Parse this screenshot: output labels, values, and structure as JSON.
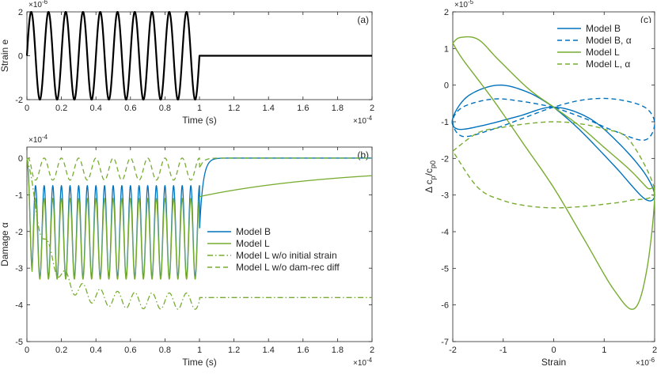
{
  "colors": {
    "blue": "#0072BD",
    "green": "#77AC30",
    "black": "#000000",
    "axis": "#262626"
  },
  "chart_data": [
    {
      "id": "a",
      "type": "line",
      "panel_label": "(a)",
      "xlabel": "Time (s)",
      "ylabel": "Strain e",
      "x_exponent": "×10",
      "x_exponent_power": "-4",
      "y_exponent": "×10",
      "y_exponent_power": "-6",
      "xlim": [
        0,
        2
      ],
      "ylim": [
        -2,
        2
      ],
      "xticks": [
        0,
        0.2,
        0.4,
        0.6,
        0.8,
        1,
        1.2,
        1.4,
        1.6,
        1.8,
        2
      ],
      "xtick_labels": [
        "0",
        "0.2",
        "0.4",
        "0.6",
        "0.8",
        "1",
        "1.2",
        "1.4",
        "1.6",
        "1.8",
        "2"
      ],
      "yticks": [
        -2,
        0,
        2
      ],
      "ytick_labels": [
        "-2",
        "0",
        "2"
      ],
      "grid": false,
      "series": [
        {
          "kind": "sine_then_flat",
          "amplitude": 2,
          "cycles": 10,
          "t_end": 1,
          "color": "#000000",
          "style": "solid",
          "width": 2.2
        }
      ]
    },
    {
      "id": "b",
      "type": "line",
      "panel_label": "(b)",
      "xlabel": "Time (s)",
      "ylabel": "Damage α",
      "x_exponent": "×10",
      "x_exponent_power": "-4",
      "y_exponent": "×10",
      "y_exponent_power": "-4",
      "xlim": [
        0,
        2
      ],
      "ylim": [
        -5,
        0.3
      ],
      "xticks": [
        0,
        0.2,
        0.4,
        0.6,
        0.8,
        1,
        1.2,
        1.4,
        1.6,
        1.8,
        2
      ],
      "xtick_labels": [
        "0",
        "0.2",
        "0.4",
        "0.6",
        "0.8",
        "1",
        "1.2",
        "1.4",
        "1.6",
        "1.8",
        "2"
      ],
      "yticks": [
        -5,
        -4,
        -3,
        -2,
        -1,
        0
      ],
      "ytick_labels": [
        "-5",
        "-4",
        "-3",
        "-2",
        "-1",
        "0"
      ],
      "grid": false,
      "legend": {
        "placement": "center-right",
        "entries": [
          {
            "label": "Model B",
            "color": "#0072BD",
            "style": "solid"
          },
          {
            "label": "Model L",
            "color": "#77AC30",
            "style": "solid"
          },
          {
            "label": "Model L w/o initial strain",
            "color": "#77AC30",
            "style": "dashdot"
          },
          {
            "label": "Model L w/o dam-rec diff",
            "color": "#77AC30",
            "style": "dashed"
          }
        ]
      },
      "series": [
        {
          "name": "Model B",
          "kind": "osc",
          "center": -2,
          "amplitude": 1.25,
          "cycles": 20,
          "t_end": 1,
          "recover_to": 0,
          "recover_tau": 0.02,
          "color": "#0072BD",
          "style": "solid",
          "width": 1.3
        },
        {
          "name": "Model L",
          "kind": "osc",
          "center": -2.2,
          "amplitude": 1.1,
          "cycles": 20,
          "t_end": 1,
          "recover_from": -1.05,
          "recover_to": -0.25,
          "recover_tau": 0.8,
          "color": "#77AC30",
          "style": "solid",
          "width": 1.3
        },
        {
          "name": "Model L w/o initial strain",
          "kind": "osc_drift",
          "start": 0,
          "center_end": -3.9,
          "amplitude": 0.22,
          "cycles": 10,
          "t_end": 1,
          "settle": -3.8,
          "color": "#77AC30",
          "style": "dashdot",
          "width": 1.3
        },
        {
          "name": "Model L w/o dam-rec diff",
          "kind": "osc",
          "center": -0.3,
          "amplitude": 0.3,
          "cycles": 10,
          "t_end": 1,
          "recover_to": 0,
          "recover_tau": 0.02,
          "color": "#77AC30",
          "style": "dashed",
          "width": 1.3
        }
      ]
    },
    {
      "id": "c",
      "type": "line",
      "panel_label": "(c)",
      "xlabel": "Strain",
      "ylabel": "Δ c",
      "ylabel_sub": "p",
      "ylabel_rest": "/c",
      "ylabel_sub2": "p0",
      "x_exponent": "×10",
      "x_exponent_power": "-6",
      "y_exponent": "×10",
      "y_exponent_power": "-5",
      "xlim": [
        -2,
        2
      ],
      "ylim": [
        -7,
        2
      ],
      "xticks": [
        -2,
        -1,
        0,
        1,
        2
      ],
      "xtick_labels": [
        "-2",
        "-1",
        "0",
        "1",
        "2"
      ],
      "yticks": [
        -7,
        -6,
        -5,
        -4,
        -3,
        -2,
        -1,
        0,
        1,
        2
      ],
      "ytick_labels": [
        "-7",
        "-6",
        "-5",
        "-4",
        "-3",
        "-2",
        "-1",
        "0",
        "1",
        "2"
      ],
      "grid": false,
      "legend": {
        "placement": "top-right",
        "entries": [
          {
            "label": "Model B",
            "color": "#0072BD",
            "style": "solid"
          },
          {
            "label": "Model B, α",
            "color": "#0072BD",
            "style": "dashed"
          },
          {
            "label": "Model L",
            "color": "#77AC30",
            "style": "solid"
          },
          {
            "label": "Model L, α",
            "color": "#77AC30",
            "style": "dashed"
          }
        ]
      },
      "series": [
        {
          "name": "Model B",
          "color": "#0072BD",
          "style": "solid",
          "width": 1.4,
          "x": [
            0,
            -0.5,
            -1.1,
            -1.7,
            -2.0,
            -1.9,
            -1.4,
            -0.7,
            0,
            0.7,
            1.3,
            1.8,
            2.0,
            1.8,
            1.2,
            0.5,
            0
          ],
          "y": [
            -0.6,
            -0.2,
            0,
            -0.3,
            -0.9,
            -1.2,
            -1.1,
            -0.85,
            -0.6,
            -0.9,
            -1.6,
            -2.4,
            -3.0,
            -3.1,
            -2.2,
            -1.2,
            -0.6
          ]
        },
        {
          "name": "Model B, α",
          "color": "#0072BD",
          "style": "dashed",
          "width": 1.4,
          "x": [
            0,
            -0.6,
            -1.2,
            -1.8,
            -2.0,
            -1.8,
            -1.2,
            -0.6,
            0,
            0.6,
            1.2,
            1.8,
            2.0,
            1.8,
            1.2,
            0.6,
            0
          ],
          "y": [
            -0.6,
            -0.45,
            -0.38,
            -0.6,
            -1.0,
            -1.4,
            -1.2,
            -0.9,
            -0.6,
            -0.4,
            -0.38,
            -0.6,
            -1.05,
            -1.5,
            -1.25,
            -0.9,
            -0.6
          ]
        },
        {
          "name": "Model L",
          "color": "#77AC30",
          "style": "solid",
          "width": 1.4,
          "x": [
            -2.0,
            -1.85,
            -1.5,
            -1.1,
            -0.5,
            0,
            0.5,
            1.0,
            1.5,
            1.85,
            2.0,
            1.85,
            1.6,
            1.2,
            0.6,
            0,
            -0.6,
            -1.2,
            -1.8,
            -2.0
          ],
          "y": [
            1.15,
            1.3,
            1.25,
            0.7,
            -0.1,
            -0.6,
            -1.1,
            -1.7,
            -2.3,
            -2.8,
            -3.0,
            -5.0,
            -6.1,
            -5.6,
            -4.2,
            -2.8,
            -1.6,
            -0.4,
            0.7,
            1.15
          ]
        },
        {
          "name": "Model L, α",
          "color": "#77AC30",
          "style": "dashed",
          "width": 1.4,
          "x": [
            -2.0,
            -1.5,
            -1.0,
            -0.5,
            0,
            0.5,
            1.0,
            1.5,
            2.0,
            1.5,
            1.0,
            0.5,
            0,
            -0.5,
            -1.0,
            -1.5,
            -2.0
          ],
          "y": [
            -1.8,
            -1.3,
            -1.15,
            -1.05,
            -1.0,
            -1.05,
            -1.2,
            -1.5,
            -2.9,
            -3.15,
            -3.25,
            -3.32,
            -3.35,
            -3.3,
            -3.15,
            -2.8,
            -1.8
          ]
        }
      ]
    }
  ]
}
